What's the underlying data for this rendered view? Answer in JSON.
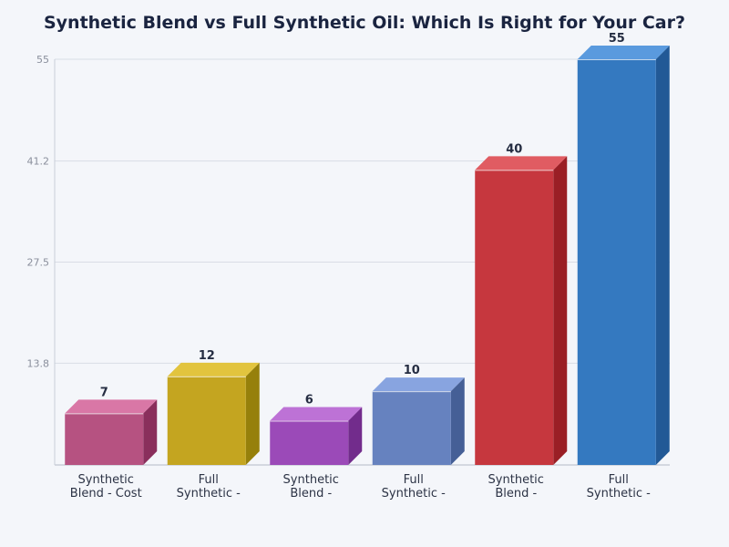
{
  "chart_data": {
    "type": "bar",
    "title": "Synthetic Blend vs Full Synthetic Oil: Which Is Right for Your Car?",
    "xlabel": "",
    "ylabel": "",
    "ylim": [
      0,
      55
    ],
    "yticks": [
      "13.8",
      "27.5",
      "41.2",
      "55"
    ],
    "grid": true,
    "legend": null,
    "style": "3d-bar",
    "categories": [
      [
        "Synthetic",
        "Blend - Cost"
      ],
      [
        "Full",
        "Synthetic -"
      ],
      [
        "Synthetic",
        "Blend -"
      ],
      [
        "Full",
        "Synthetic -"
      ],
      [
        "Synthetic",
        "Blend -"
      ],
      [
        "Full",
        "Synthetic -"
      ]
    ],
    "values": [
      7,
      12,
      6,
      10,
      40,
      55
    ],
    "value_labels": [
      "7",
      "12",
      "6",
      "10",
      "40",
      "55"
    ],
    "colors": [
      {
        "front": "#b65281",
        "top": "#d977a6",
        "side": "#8a2f5c"
      },
      {
        "front": "#c4a520",
        "top": "#e2c43e",
        "side": "#96800b"
      },
      {
        "front": "#9b4ab8",
        "top": "#bd72d6",
        "side": "#722c8c"
      },
      {
        "front": "#6682bf",
        "top": "#88a4e0",
        "side": "#455f96"
      },
      {
        "front": "#c6373e",
        "top": "#e05c62",
        "side": "#9a1f25"
      },
      {
        "front": "#3479c0",
        "top": "#5a9ade",
        "side": "#225996"
      }
    ]
  }
}
